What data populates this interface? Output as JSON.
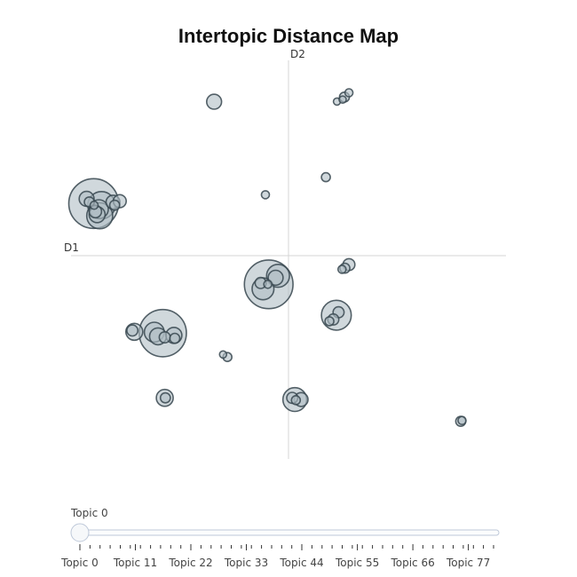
{
  "chart_data": {
    "type": "scatter",
    "title": "Intertopic Distance Map",
    "xlabel": "D1",
    "ylabel": "D2",
    "xlim": [
      -1,
      1
    ],
    "ylim": [
      -1,
      1
    ],
    "grid": false,
    "marker_color": "#b0bec5",
    "marker_line_color": "#37474f",
    "points": [
      {
        "x": -0.896,
        "y": 0.267,
        "size": 1.0
      },
      {
        "x": -0.86,
        "y": 0.258,
        "size": 0.55
      },
      {
        "x": -0.872,
        "y": 0.238,
        "size": 0.38
      },
      {
        "x": -0.868,
        "y": 0.204,
        "size": 0.52
      },
      {
        "x": -0.88,
        "y": 0.21,
        "size": 0.32
      },
      {
        "x": -0.888,
        "y": 0.226,
        "size": 0.25
      },
      {
        "x": -0.928,
        "y": 0.291,
        "size": 0.3
      },
      {
        "x": -0.916,
        "y": 0.275,
        "size": 0.2
      },
      {
        "x": -0.894,
        "y": 0.258,
        "size": 0.16
      },
      {
        "x": -0.807,
        "y": 0.274,
        "size": 0.28
      },
      {
        "x": -0.776,
        "y": 0.279,
        "size": 0.26
      },
      {
        "x": -0.799,
        "y": 0.258,
        "size": 0.2
      },
      {
        "x": -0.342,
        "y": 0.788,
        "size": 0.3
      },
      {
        "x": -0.106,
        "y": 0.312,
        "size": 0.16
      },
      {
        "x": 0.172,
        "y": 0.402,
        "size": 0.18
      },
      {
        "x": 0.257,
        "y": 0.812,
        "size": 0.2
      },
      {
        "x": 0.278,
        "y": 0.834,
        "size": 0.16
      },
      {
        "x": 0.223,
        "y": 0.789,
        "size": 0.14
      },
      {
        "x": 0.249,
        "y": 0.799,
        "size": 0.13
      },
      {
        "x": -0.091,
        "y": -0.147,
        "size": 0.98
      },
      {
        "x": -0.048,
        "y": -0.103,
        "size": 0.46
      },
      {
        "x": -0.059,
        "y": -0.113,
        "size": 0.3
      },
      {
        "x": -0.117,
        "y": -0.17,
        "size": 0.44
      },
      {
        "x": -0.128,
        "y": -0.14,
        "size": 0.22
      },
      {
        "x": -0.095,
        "y": -0.147,
        "size": 0.16
      },
      {
        "x": 0.278,
        "y": -0.046,
        "size": 0.24
      },
      {
        "x": 0.259,
        "y": -0.064,
        "size": 0.2
      },
      {
        "x": 0.246,
        "y": -0.07,
        "size": 0.16
      },
      {
        "x": 0.22,
        "y": -0.305,
        "size": 0.6
      },
      {
        "x": 0.23,
        "y": -0.29,
        "size": 0.22
      },
      {
        "x": 0.206,
        "y": -0.327,
        "size": 0.22
      },
      {
        "x": 0.188,
        "y": -0.336,
        "size": 0.18
      },
      {
        "x": -0.709,
        "y": -0.39,
        "size": 0.34
      },
      {
        "x": -0.718,
        "y": -0.383,
        "size": 0.22
      },
      {
        "x": -0.578,
        "y": -0.397,
        "size": 0.95
      },
      {
        "x": -0.617,
        "y": -0.392,
        "size": 0.4
      },
      {
        "x": -0.6,
        "y": -0.413,
        "size": 0.34
      },
      {
        "x": -0.569,
        "y": -0.418,
        "size": 0.22
      },
      {
        "x": -0.527,
        "y": -0.408,
        "size": 0.32
      },
      {
        "x": -0.523,
        "y": -0.423,
        "size": 0.2
      },
      {
        "x": -0.301,
        "y": -0.506,
        "size": 0.14
      },
      {
        "x": -0.281,
        "y": -0.519,
        "size": 0.18
      },
      {
        "x": -0.569,
        "y": -0.728,
        "size": 0.34
      },
      {
        "x": -0.566,
        "y": -0.728,
        "size": 0.2
      },
      {
        "x": 0.029,
        "y": -0.737,
        "size": 0.48
      },
      {
        "x": 0.058,
        "y": -0.737,
        "size": 0.28
      },
      {
        "x": 0.017,
        "y": -0.728,
        "size": 0.22
      },
      {
        "x": 0.034,
        "y": -0.74,
        "size": 0.18
      },
      {
        "x": 0.792,
        "y": -0.848,
        "size": 0.2
      },
      {
        "x": 0.798,
        "y": -0.844,
        "size": 0.16
      }
    ]
  },
  "slider": {
    "current_label": "Topic 0",
    "tick_labels": [
      "Topic 0",
      "Topic 11",
      "Topic 22",
      "Topic 33",
      "Topic 44",
      "Topic 55",
      "Topic 66",
      "Topic 77"
    ],
    "max_topic": 82
  }
}
